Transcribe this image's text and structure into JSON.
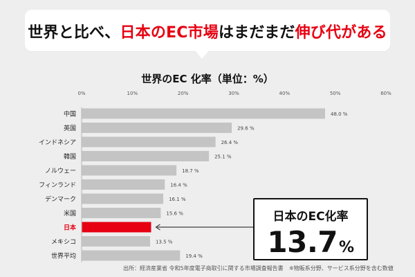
{
  "headline": {
    "part1": "世界と比べ、",
    "part2": "日本のEC市場",
    "part3": "はまだまだ",
    "part4": "伸び代がある"
  },
  "callout": {
    "label": "日本のEC化率",
    "value": "13.7",
    "unit": "%"
  },
  "footnotes": {
    "source": "出所：経済産業省 令和5年度電子商取引に関する市場調査報告書",
    "note": "※物販系分野、サービス系分野を含む数値"
  },
  "colors": {
    "bar": "#c4c4c4",
    "highlight": "#e60012",
    "axis": "#bdbdbd",
    "background": "#eeeeee"
  },
  "chart_data": {
    "type": "bar",
    "orientation": "horizontal",
    "title": "世界のEC 化率（単位：%）",
    "xlim": [
      0,
      60
    ],
    "xticks": [
      "0%",
      "10%",
      "20%",
      "30%",
      "40%",
      "50%",
      "60%"
    ],
    "grid": false,
    "categories": [
      "中国",
      "英国",
      "インドネシア",
      "韓国",
      "ノルウェー",
      "フィンランド",
      "デンマーク",
      "米国",
      "日本",
      "メキシコ",
      "世界平均"
    ],
    "values": [
      48.0,
      29.6,
      26.4,
      25.1,
      18.7,
      16.4,
      16.1,
      15.6,
      13.7,
      13.5,
      19.4
    ],
    "labels": [
      "48.0 %",
      "29.6 %",
      "26.4 %",
      "25.1 %",
      "18.7 %",
      "16.4 %",
      "16.1 %",
      "15.6 %",
      "",
      "13.5 %",
      "19.4 %"
    ],
    "highlight_category": "日本"
  }
}
